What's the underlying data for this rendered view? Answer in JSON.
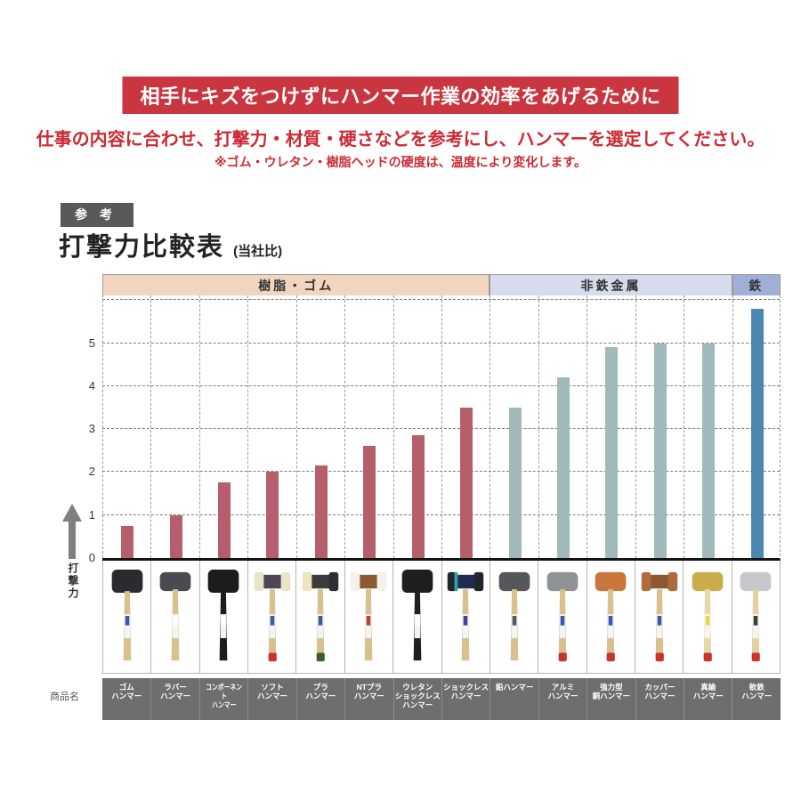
{
  "banner": {
    "text": "相手にキズをつけずにハンマー作業の効率をあげるために"
  },
  "lead": {
    "text": "仕事の内容に合わせ、打撃力・材質・硬さなどを参考にし、ハンマーを選定してください。"
  },
  "note": {
    "text": "※ゴム・ウレタン・樹脂ヘッドの硬度は、温度により変化します。"
  },
  "ref_badge": {
    "label": "参考"
  },
  "title": {
    "text": "打撃力比較表",
    "suffix": "(当社比)"
  },
  "axis": {
    "ylabel": "打撃力",
    "row_label": "商品名"
  },
  "groups": [
    {
      "label": "樹脂・ゴム",
      "span": 8,
      "band_color": "#f2d5bf",
      "bar_color": "#b65f6b"
    },
    {
      "label": "非鉄金属",
      "span": 5,
      "band_color": "#d6dcec",
      "bar_color": "#a0b9ba"
    },
    {
      "label": "鉄",
      "span": 1,
      "band_color": "#9fafd7",
      "bar_color": "#4c87ad"
    }
  ],
  "chart_data": {
    "type": "bar",
    "title": "打撃力比較表(当社比)",
    "xlabel": "商品名",
    "ylabel": "打撃力",
    "ylim": [
      0,
      6
    ],
    "yticks": [
      0,
      1,
      2,
      3,
      4,
      5
    ],
    "grid": true,
    "legend": false,
    "categories": [
      "ゴムハンマー",
      "ラバーハンマー",
      "コンポーネントハンマー",
      "ソフトハンマー",
      "プラハンマー",
      "NTプラハンマー",
      "ウレタンショックレスハンマー",
      "ショックレスハンマー",
      "鉛ハンマー",
      "アルミハンマー",
      "強力型銅ハンマー",
      "カッパーハンマー",
      "真鍮ハンマー",
      "軟鉄ハンマー"
    ],
    "values": [
      0.75,
      1.0,
      1.75,
      2.0,
      2.15,
      2.6,
      2.85,
      3.5,
      3.5,
      4.2,
      4.9,
      5.0,
      5.0,
      5.8
    ],
    "group_of": [
      0,
      0,
      0,
      0,
      0,
      0,
      0,
      0,
      1,
      1,
      1,
      1,
      1,
      2
    ],
    "group_labels": [
      "樹脂・ゴム",
      "非鉄金属",
      "鉄"
    ],
    "series_colors": [
      "#b65f6b",
      "#a0b9ba",
      "#4c87ad"
    ]
  },
  "products": [
    {
      "display_name": "ゴム\nハンマー",
      "illustration": {
        "head": "mono",
        "head_colors": [
          "#2b2b2f"
        ],
        "handle": "#d9c08c",
        "label": "#3a58a8",
        "butt": null,
        "big_head": true
      }
    },
    {
      "display_name": "ラバー\nハンマー",
      "illustration": {
        "head": "mono",
        "head_colors": [
          "#4a4a50"
        ],
        "handle": "#d9c08c",
        "label": "#ffffff",
        "butt": null
      }
    },
    {
      "display_name": "コンポーネント\nハンマー",
      "illustration": {
        "head": "mono",
        "head_colors": [
          "#1c1c1f"
        ],
        "handle": "#1c1c1f",
        "label": "#ffffff",
        "butt": null,
        "big_head": true
      }
    },
    {
      "display_name": "ソフト\nハンマー",
      "illustration": {
        "head": "caps",
        "head_colors": [
          "#eae3c8",
          "#4c4656",
          "#eae3c8"
        ],
        "handle": "#d9c08c",
        "label": "#3a58a8",
        "butt": "#c8332b"
      }
    },
    {
      "display_name": "プラ\nハンマー",
      "illustration": {
        "head": "caps",
        "head_colors": [
          "#ece5bd",
          "#3c3c3c",
          "#2e2e31"
        ],
        "handle": "#d9c08c",
        "label": "#3a58a8",
        "butt": "#3c5a33"
      }
    },
    {
      "display_name": "NTプラ\nハンマー",
      "illustration": {
        "head": "caps",
        "head_colors": [
          "#f3f1ea",
          "#8a5a33",
          "#f3f1ea"
        ],
        "handle": "#d9c08c",
        "label": "#b0413e",
        "butt": null
      }
    },
    {
      "display_name": "ウレタン\nショックレス\nハンマー",
      "illustration": {
        "head": "mono",
        "head_colors": [
          "#1f1f22"
        ],
        "handle": "#1f1f22",
        "label": "#ffffff",
        "butt": null,
        "big_head": true
      }
    },
    {
      "display_name": "ショックレス\nハンマー",
      "illustration": {
        "head": "caps",
        "head_colors": [
          "#20262d",
          "#1f2c52",
          "#20262d"
        ],
        "accent": "#2fa3a0",
        "handle": "#d9c08c",
        "label": "#4a3f94",
        "butt": null
      }
    },
    {
      "display_name": "鉛ハンマー",
      "illustration": {
        "head": "mono",
        "head_colors": [
          "#55575c"
        ],
        "handle": "#d9c08c",
        "label": "#55565a",
        "butt": null
      }
    },
    {
      "display_name": "アルミ\nハンマー",
      "illustration": {
        "head": "mono",
        "head_colors": [
          "#8e9196"
        ],
        "handle": "#d9c08c",
        "label": "#3a58a8",
        "butt": "#c8332b"
      }
    },
    {
      "display_name": "強力型\n銅ハンマー",
      "illustration": {
        "head": "mono",
        "head_colors": [
          "#c8763c"
        ],
        "handle": "#d9c08c",
        "label": "#3a58a8",
        "butt": "#c8332b"
      }
    },
    {
      "display_name": "カッパー\nハンマー",
      "illustration": {
        "head": "caps",
        "head_colors": [
          "#b06a3c",
          "#8a5a33",
          "#b06a3c"
        ],
        "handle": "#d9c08c",
        "label": "#3a58a8",
        "butt": "#c8332b"
      }
    },
    {
      "display_name": "真鍮\nハンマー",
      "illustration": {
        "head": "mono",
        "head_colors": [
          "#c9ad4b"
        ],
        "handle": "#e6d9a8",
        "label": "#e8d44d",
        "butt": "#c8332b"
      }
    },
    {
      "display_name": "軟鉄\nハンマー",
      "illustration": {
        "head": "mono",
        "head_colors": [
          "#c6c8cb"
        ],
        "handle": "#e0d0a4",
        "label": "#3b3b3b",
        "butt": "#c8332b"
      }
    }
  ]
}
